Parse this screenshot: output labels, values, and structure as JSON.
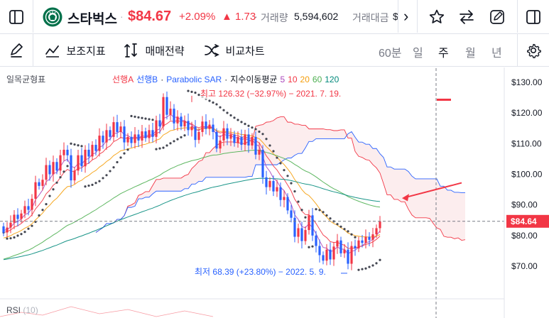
{
  "header": {
    "symbol_name": "스타벅스",
    "price": "$84.67",
    "change_pct": "+2.09%",
    "change_abs": "▲ 1.73",
    "volume_label": "거래량",
    "volume_value": "5,594,602",
    "turnover_label": "거래대금",
    "turnover_value": "$",
    "more_glyph": "›",
    "icons": [
      "sidebar-toggle-icon",
      "starbucks-logo",
      "chevron-right-icon",
      "star-icon",
      "compare-arrows-icon",
      "edit-icon",
      "panel-right-icon"
    ]
  },
  "toolbar": {
    "indicators_label": "보조지표",
    "strategy_label": "매매전략",
    "compare_label": "비교차트",
    "timeframes": [
      "60분",
      "일",
      "주",
      "월",
      "년"
    ],
    "active_timeframe": "주",
    "icons": [
      "pencil-icon",
      "indicators-icon",
      "strategy-icon",
      "compare-icon",
      "settings-icon"
    ]
  },
  "chart_data": {
    "type": "candlestick",
    "indicator_title": "일목균형표",
    "legend": [
      {
        "label": "선행A",
        "color": "#f23645"
      },
      {
        "label": "선행B",
        "color": "#2962ff"
      },
      {
        "label": "·",
        "color": "#131722"
      },
      {
        "label": "Parabolic SAR",
        "color": "#2962ff"
      },
      {
        "label": "·",
        "color": "#131722"
      },
      {
        "label": "지수이동평균",
        "color": "#131722"
      },
      {
        "label": "5",
        "color": "#ab47bc"
      },
      {
        "label": "10",
        "color": "#f23645"
      },
      {
        "label": "20",
        "color": "#f59e0b"
      },
      {
        "label": "60",
        "color": "#4caf50"
      },
      {
        "label": "120",
        "color": "#00897b"
      }
    ],
    "y_ticks": [
      "$130.00",
      "$120.00",
      "$110.00",
      "$100.00",
      "$90.00",
      "$80.00",
      "$70.00"
    ],
    "y_tick_values": [
      130,
      120,
      110,
      100,
      90,
      80,
      70
    ],
    "ylim": [
      64.5,
      134
    ],
    "last_price_label": "$84.64",
    "last_price": 84.64,
    "annotation_high": "최고 126.32 (−32.97%) − 2021. 7. 19.",
    "annotation_low": "최저 68.39 (+23.80%) − 2022. 5. 9.",
    "high_value": 126.32,
    "low_value": 68.39,
    "candles": [
      [
        83.0,
        81.0
      ],
      [
        81.0,
        82.6
      ],
      [
        82.6,
        84.2
      ],
      [
        84.2,
        86.8
      ],
      [
        86.8,
        85.4
      ],
      [
        85.4,
        87.2
      ],
      [
        87.2,
        89.6
      ],
      [
        89.6,
        88.4
      ],
      [
        88.4,
        92.0
      ],
      [
        92.0,
        97.4
      ],
      [
        97.4,
        96.2
      ],
      [
        96.2,
        98.2
      ],
      [
        98.2,
        103.0
      ],
      [
        103.0,
        100.0
      ],
      [
        100.0,
        104.0
      ],
      [
        104.0,
        101.2
      ],
      [
        101.2,
        106.2
      ],
      [
        106.2,
        108.0
      ],
      [
        108.0,
        106.2
      ],
      [
        106.2,
        98.0
      ],
      [
        98.0,
        101.2
      ],
      [
        101.2,
        106.2
      ],
      [
        106.2,
        102.6
      ],
      [
        102.6,
        108.0
      ],
      [
        108.0,
        105.8
      ],
      [
        105.8,
        109.6
      ],
      [
        109.6,
        107.6
      ],
      [
        107.6,
        112.6
      ],
      [
        112.6,
        110.4
      ],
      [
        110.4,
        114.4
      ],
      [
        114.4,
        112.2
      ],
      [
        112.2,
        117.0
      ],
      [
        117.0,
        113.8
      ],
      [
        113.8,
        115.6
      ],
      [
        115.6,
        110.4
      ],
      [
        110.4,
        112.2
      ],
      [
        112.2,
        110.2
      ],
      [
        110.2,
        113.0
      ],
      [
        113.0,
        111.0
      ],
      [
        111.0,
        114.0
      ],
      [
        114.0,
        111.8
      ],
      [
        111.8,
        114.4
      ],
      [
        114.4,
        112.2
      ],
      [
        112.2,
        117.6
      ],
      [
        117.6,
        115.6
      ],
      [
        115.6,
        125.2
      ],
      [
        125.2,
        119.4
      ],
      [
        119.4,
        121.4
      ],
      [
        121.4,
        116.6
      ],
      [
        116.6,
        118.8
      ],
      [
        118.8,
        115.6
      ],
      [
        115.6,
        117.4
      ],
      [
        117.4,
        114.4
      ],
      [
        114.4,
        115.6
      ],
      [
        115.6,
        111.2
      ],
      [
        111.2,
        113.8
      ],
      [
        113.8,
        117.2
      ],
      [
        117.2,
        114.8
      ],
      [
        114.8,
        116.2
      ],
      [
        116.2,
        113.8
      ],
      [
        113.8,
        108.4
      ],
      [
        108.4,
        111.0
      ],
      [
        111.0,
        115.0
      ],
      [
        115.0,
        111.6
      ],
      [
        111.6,
        113.0
      ],
      [
        113.0,
        110.2
      ],
      [
        110.2,
        112.2
      ],
      [
        112.2,
        109.6
      ],
      [
        109.6,
        113.0
      ],
      [
        113.0,
        109.4
      ],
      [
        109.4,
        112.2
      ],
      [
        112.2,
        106.4
      ],
      [
        106.4,
        108.0
      ],
      [
        108.0,
        99.0
      ],
      [
        99.0,
        95.8
      ],
      [
        95.8,
        97.8
      ],
      [
        97.8,
        94.4
      ],
      [
        94.4,
        95.8
      ],
      [
        95.8,
        91.6
      ],
      [
        91.6,
        92.6
      ],
      [
        92.6,
        88.2
      ],
      [
        88.2,
        85.8
      ],
      [
        85.8,
        79.6
      ],
      [
        79.6,
        82.4
      ],
      [
        82.4,
        78.2
      ],
      [
        78.2,
        81.8
      ],
      [
        81.8,
        86.6
      ],
      [
        86.6,
        80.0
      ],
      [
        80.0,
        76.6
      ],
      [
        76.6,
        73.6
      ],
      [
        73.6,
        71.8
      ],
      [
        71.8,
        75.4
      ],
      [
        75.4,
        72.2
      ],
      [
        72.2,
        76.4
      ],
      [
        76.4,
        78.4
      ],
      [
        78.4,
        74.2
      ],
      [
        74.2,
        75.4
      ],
      [
        75.4,
        70.8
      ],
      [
        70.8,
        76.6
      ],
      [
        76.6,
        75.8
      ],
      [
        75.8,
        78.4
      ],
      [
        78.4,
        77.6
      ],
      [
        77.6,
        79.6
      ],
      [
        79.6,
        78.6
      ],
      [
        78.6,
        80.4
      ],
      [
        80.4,
        82.4
      ],
      [
        82.4,
        84.6
      ]
    ]
  }
}
